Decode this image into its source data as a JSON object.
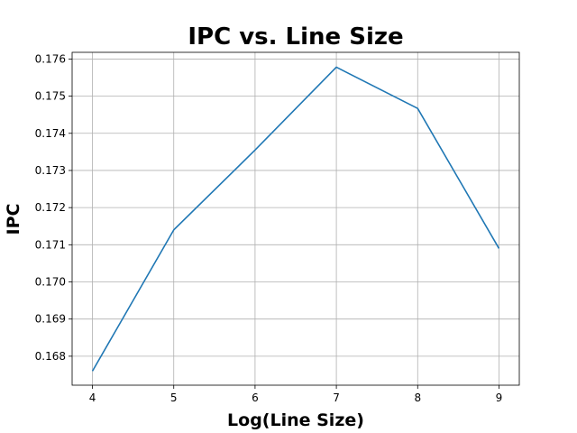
{
  "chart_data": {
    "type": "line",
    "title": "IPC vs. Line Size",
    "xlabel": "Log(Line Size)",
    "ylabel": "IPC",
    "x": [
      4,
      5,
      6,
      7,
      8,
      9
    ],
    "series": [
      {
        "values": [
          0.1676,
          0.1714,
          0.17355,
          0.17578,
          0.17467,
          0.1709
        ]
      }
    ],
    "xticks": [
      "4",
      "5",
      "6",
      "7",
      "8",
      "9"
    ],
    "yticks": [
      "0.168",
      "0.169",
      "0.170",
      "0.171",
      "0.172",
      "0.173",
      "0.174",
      "0.175",
      "0.176"
    ],
    "xlim": [
      3.75,
      9.25
    ],
    "ylim": [
      0.16722,
      0.17618
    ],
    "grid": true,
    "line_color": "#1f77b4"
  }
}
